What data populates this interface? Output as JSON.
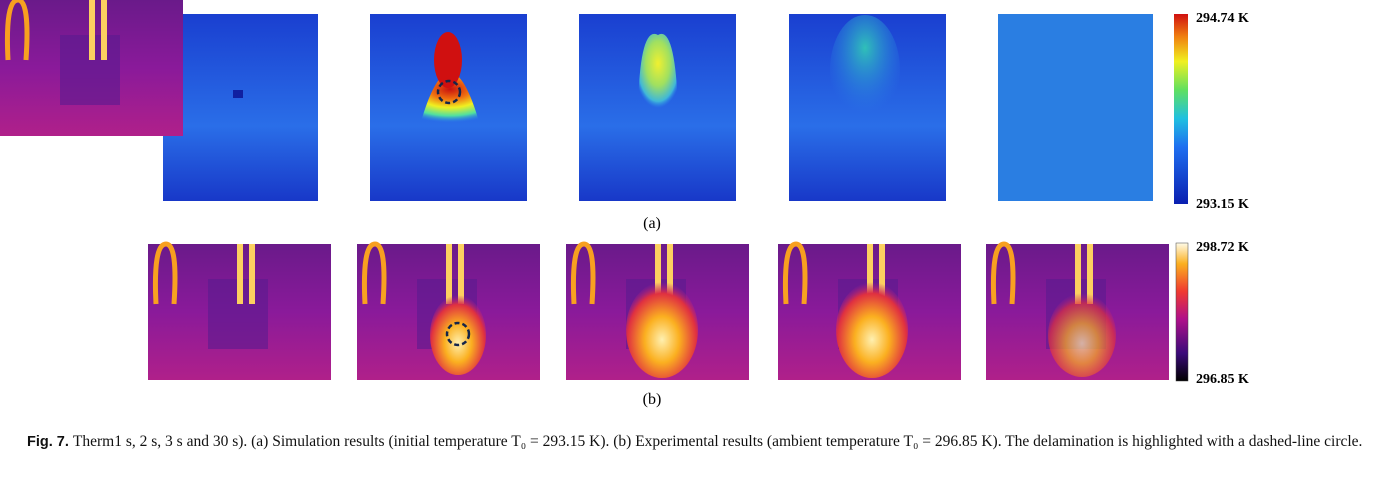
{
  "figure": {
    "panel_a": {
      "label": "(a)",
      "colorbar": {
        "max": "294.74 K",
        "min": "293.15 K"
      }
    },
    "panel_b": {
      "label": "(b)",
      "colorbar": {
        "max": "298.72 K",
        "min": "296.85 K"
      }
    }
  },
  "caption": {
    "label": "Fig. 7.",
    "text": "Therm1 s, 2 s, 3 s and 30 s). (a) Simulation results (initial temperature T₀ = 293.15 K). (b) Experimental results (ambient temperature T₀ = 296.85 K). The delamination is highlighted with a dashed-line circle."
  }
}
